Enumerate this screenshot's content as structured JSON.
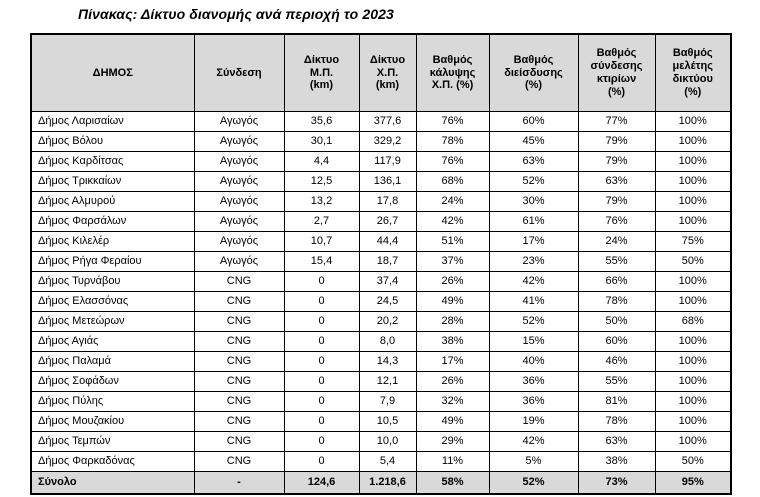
{
  "title": "Πίνακας: Δίκτυο διανομής ανά περιοχή το 2023",
  "colors": {
    "header_bg": "#d9d9d9",
    "total_bg": "#d9d9d9",
    "border": "#000000",
    "text": "#000000"
  },
  "table": {
    "columns": [
      "ΔΗΜΟΣ",
      "Σύνδεση",
      "Δίκτυο\nΜ.Π.\n(km)",
      "Δίκτυο\nΧ.Π.\n(km)",
      "Βαθμός\nκάλυψης\nΧ.Π. (%)",
      "Βαθμός\nδιείσδυσης\n(%)",
      "Βαθμός\nσύνδεσης\nκτιρίων\n(%)",
      "Βαθμός\nμελέτης\nδικτύου\n(%)"
    ],
    "rows": [
      [
        "Δήμος Λαρισαίων",
        "Αγωγός",
        "35,6",
        "377,6",
        "76%",
        "60%",
        "77%",
        "100%"
      ],
      [
        "Δήμος Βόλου",
        "Αγωγός",
        "30,1",
        "329,2",
        "78%",
        "45%",
        "79%",
        "100%"
      ],
      [
        "Δήμος Καρδίτσας",
        "Αγωγός",
        "4,4",
        "117,9",
        "76%",
        "63%",
        "79%",
        "100%"
      ],
      [
        "Δήμος Τρικκαίων",
        "Αγωγός",
        "12,5",
        "136,1",
        "68%",
        "52%",
        "63%",
        "100%"
      ],
      [
        "Δήμος Αλμυρού",
        "Αγωγός",
        "13,2",
        "17,8",
        "24%",
        "30%",
        "79%",
        "100%"
      ],
      [
        "Δήμος Φαρσάλων",
        "Αγωγός",
        "2,7",
        "26,7",
        "42%",
        "61%",
        "76%",
        "100%"
      ],
      [
        "Δήμος Κιλελέρ",
        "Αγωγός",
        "10,7",
        "44,4",
        "51%",
        "17%",
        "24%",
        "75%"
      ],
      [
        "Δήμος Ρήγα Φεραίου",
        "Αγωγός",
        "15,4",
        "18,7",
        "37%",
        "23%",
        "55%",
        "50%"
      ],
      [
        "Δήμος Τυρνάβου",
        "CNG",
        "0",
        "37,4",
        "26%",
        "42%",
        "66%",
        "100%"
      ],
      [
        "Δήμος Ελασσόνας",
        "CNG",
        "0",
        "24,5",
        "49%",
        "41%",
        "78%",
        "100%"
      ],
      [
        "Δήμος Μετεώρων",
        "CNG",
        "0",
        "20,2",
        "28%",
        "52%",
        "50%",
        "68%"
      ],
      [
        "Δήμος Αγιάς",
        "CNG",
        "0",
        "8,0",
        "38%",
        "15%",
        "60%",
        "100%"
      ],
      [
        "Δήμος Παλαμά",
        "CNG",
        "0",
        "14,3",
        "17%",
        "40%",
        "46%",
        "100%"
      ],
      [
        "Δήμος Σοφάδων",
        "CNG",
        "0",
        "12,1",
        "26%",
        "36%",
        "55%",
        "100%"
      ],
      [
        "Δήμος Πύλης",
        "CNG",
        "0",
        "7,9",
        "32%",
        "36%",
        "81%",
        "100%"
      ],
      [
        "Δήμος Μουζακίου",
        "CNG",
        "0",
        "10,5",
        "49%",
        "19%",
        "78%",
        "100%"
      ],
      [
        "Δήμος Τεμπών",
        "CNG",
        "0",
        "10,0",
        "29%",
        "42%",
        "63%",
        "100%"
      ],
      [
        "Δήμος Φαρκαδόνας",
        "CNG",
        "0",
        "5,4",
        "11%",
        "5%",
        "38%",
        "50%"
      ]
    ],
    "total_row": [
      "Σύνολο",
      "-",
      "124,6",
      "1.218,6",
      "58%",
      "52%",
      "73%",
      "95%"
    ]
  }
}
